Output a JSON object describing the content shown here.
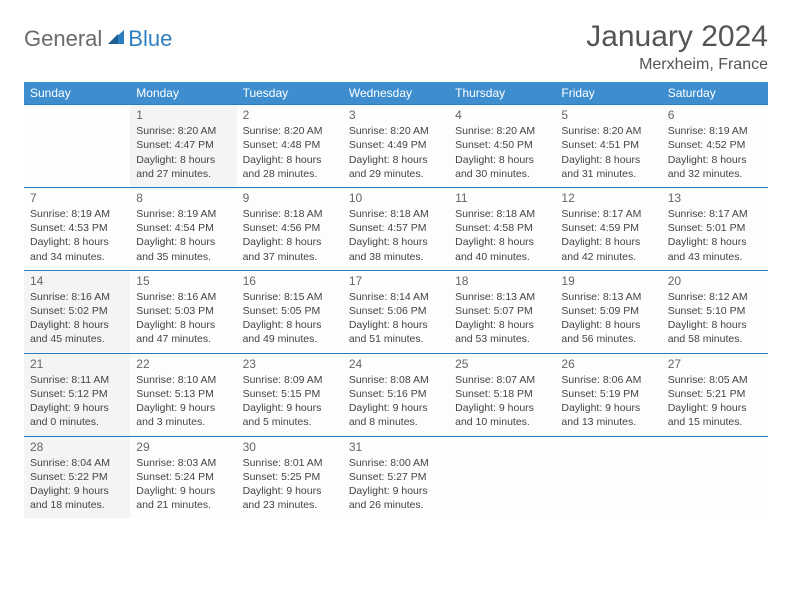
{
  "logo": {
    "general": "General",
    "blue": "Blue",
    "icon_color": "#2e7fc1"
  },
  "title": "January 2024",
  "location": "Merxheim, France",
  "colors": {
    "header_bg": "#3e8ecf",
    "header_text": "#ffffff",
    "border": "#2e7fc1",
    "shaded_bg": "#f4f4f4",
    "plain_bg": "#fdfdfd",
    "text": "#444444",
    "daynum": "#666666"
  },
  "weekdays": [
    "Sunday",
    "Monday",
    "Tuesday",
    "Wednesday",
    "Thursday",
    "Friday",
    "Saturday"
  ],
  "weeks": [
    [
      {
        "shaded": false
      },
      {
        "n": "1",
        "sr": "Sunrise: 8:20 AM",
        "ss": "Sunset: 4:47 PM",
        "d1": "Daylight: 8 hours",
        "d2": "and 27 minutes.",
        "shaded": true
      },
      {
        "n": "2",
        "sr": "Sunrise: 8:20 AM",
        "ss": "Sunset: 4:48 PM",
        "d1": "Daylight: 8 hours",
        "d2": "and 28 minutes.",
        "shaded": false
      },
      {
        "n": "3",
        "sr": "Sunrise: 8:20 AM",
        "ss": "Sunset: 4:49 PM",
        "d1": "Daylight: 8 hours",
        "d2": "and 29 minutes.",
        "shaded": false
      },
      {
        "n": "4",
        "sr": "Sunrise: 8:20 AM",
        "ss": "Sunset: 4:50 PM",
        "d1": "Daylight: 8 hours",
        "d2": "and 30 minutes.",
        "shaded": false
      },
      {
        "n": "5",
        "sr": "Sunrise: 8:20 AM",
        "ss": "Sunset: 4:51 PM",
        "d1": "Daylight: 8 hours",
        "d2": "and 31 minutes.",
        "shaded": false
      },
      {
        "n": "6",
        "sr": "Sunrise: 8:19 AM",
        "ss": "Sunset: 4:52 PM",
        "d1": "Daylight: 8 hours",
        "d2": "and 32 minutes.",
        "shaded": false
      }
    ],
    [
      {
        "n": "7",
        "sr": "Sunrise: 8:19 AM",
        "ss": "Sunset: 4:53 PM",
        "d1": "Daylight: 8 hours",
        "d2": "and 34 minutes.",
        "shaded": false
      },
      {
        "n": "8",
        "sr": "Sunrise: 8:19 AM",
        "ss": "Sunset: 4:54 PM",
        "d1": "Daylight: 8 hours",
        "d2": "and 35 minutes.",
        "shaded": false
      },
      {
        "n": "9",
        "sr": "Sunrise: 8:18 AM",
        "ss": "Sunset: 4:56 PM",
        "d1": "Daylight: 8 hours",
        "d2": "and 37 minutes.",
        "shaded": false
      },
      {
        "n": "10",
        "sr": "Sunrise: 8:18 AM",
        "ss": "Sunset: 4:57 PM",
        "d1": "Daylight: 8 hours",
        "d2": "and 38 minutes.",
        "shaded": false
      },
      {
        "n": "11",
        "sr": "Sunrise: 8:18 AM",
        "ss": "Sunset: 4:58 PM",
        "d1": "Daylight: 8 hours",
        "d2": "and 40 minutes.",
        "shaded": false
      },
      {
        "n": "12",
        "sr": "Sunrise: 8:17 AM",
        "ss": "Sunset: 4:59 PM",
        "d1": "Daylight: 8 hours",
        "d2": "and 42 minutes.",
        "shaded": false
      },
      {
        "n": "13",
        "sr": "Sunrise: 8:17 AM",
        "ss": "Sunset: 5:01 PM",
        "d1": "Daylight: 8 hours",
        "d2": "and 43 minutes.",
        "shaded": false
      }
    ],
    [
      {
        "n": "14",
        "sr": "Sunrise: 8:16 AM",
        "ss": "Sunset: 5:02 PM",
        "d1": "Daylight: 8 hours",
        "d2": "and 45 minutes.",
        "shaded": true
      },
      {
        "n": "15",
        "sr": "Sunrise: 8:16 AM",
        "ss": "Sunset: 5:03 PM",
        "d1": "Daylight: 8 hours",
        "d2": "and 47 minutes.",
        "shaded": false
      },
      {
        "n": "16",
        "sr": "Sunrise: 8:15 AM",
        "ss": "Sunset: 5:05 PM",
        "d1": "Daylight: 8 hours",
        "d2": "and 49 minutes.",
        "shaded": false
      },
      {
        "n": "17",
        "sr": "Sunrise: 8:14 AM",
        "ss": "Sunset: 5:06 PM",
        "d1": "Daylight: 8 hours",
        "d2": "and 51 minutes.",
        "shaded": false
      },
      {
        "n": "18",
        "sr": "Sunrise: 8:13 AM",
        "ss": "Sunset: 5:07 PM",
        "d1": "Daylight: 8 hours",
        "d2": "and 53 minutes.",
        "shaded": false
      },
      {
        "n": "19",
        "sr": "Sunrise: 8:13 AM",
        "ss": "Sunset: 5:09 PM",
        "d1": "Daylight: 8 hours",
        "d2": "and 56 minutes.",
        "shaded": false
      },
      {
        "n": "20",
        "sr": "Sunrise: 8:12 AM",
        "ss": "Sunset: 5:10 PM",
        "d1": "Daylight: 8 hours",
        "d2": "and 58 minutes.",
        "shaded": false
      }
    ],
    [
      {
        "n": "21",
        "sr": "Sunrise: 8:11 AM",
        "ss": "Sunset: 5:12 PM",
        "d1": "Daylight: 9 hours",
        "d2": "and 0 minutes.",
        "shaded": true
      },
      {
        "n": "22",
        "sr": "Sunrise: 8:10 AM",
        "ss": "Sunset: 5:13 PM",
        "d1": "Daylight: 9 hours",
        "d2": "and 3 minutes.",
        "shaded": false
      },
      {
        "n": "23",
        "sr": "Sunrise: 8:09 AM",
        "ss": "Sunset: 5:15 PM",
        "d1": "Daylight: 9 hours",
        "d2": "and 5 minutes.",
        "shaded": false
      },
      {
        "n": "24",
        "sr": "Sunrise: 8:08 AM",
        "ss": "Sunset: 5:16 PM",
        "d1": "Daylight: 9 hours",
        "d2": "and 8 minutes.",
        "shaded": false
      },
      {
        "n": "25",
        "sr": "Sunrise: 8:07 AM",
        "ss": "Sunset: 5:18 PM",
        "d1": "Daylight: 9 hours",
        "d2": "and 10 minutes.",
        "shaded": false
      },
      {
        "n": "26",
        "sr": "Sunrise: 8:06 AM",
        "ss": "Sunset: 5:19 PM",
        "d1": "Daylight: 9 hours",
        "d2": "and 13 minutes.",
        "shaded": false
      },
      {
        "n": "27",
        "sr": "Sunrise: 8:05 AM",
        "ss": "Sunset: 5:21 PM",
        "d1": "Daylight: 9 hours",
        "d2": "and 15 minutes.",
        "shaded": false
      }
    ],
    [
      {
        "n": "28",
        "sr": "Sunrise: 8:04 AM",
        "ss": "Sunset: 5:22 PM",
        "d1": "Daylight: 9 hours",
        "d2": "and 18 minutes.",
        "shaded": true
      },
      {
        "n": "29",
        "sr": "Sunrise: 8:03 AM",
        "ss": "Sunset: 5:24 PM",
        "d1": "Daylight: 9 hours",
        "d2": "and 21 minutes.",
        "shaded": false
      },
      {
        "n": "30",
        "sr": "Sunrise: 8:01 AM",
        "ss": "Sunset: 5:25 PM",
        "d1": "Daylight: 9 hours",
        "d2": "and 23 minutes.",
        "shaded": false
      },
      {
        "n": "31",
        "sr": "Sunrise: 8:00 AM",
        "ss": "Sunset: 5:27 PM",
        "d1": "Daylight: 9 hours",
        "d2": "and 26 minutes.",
        "shaded": false
      },
      {
        "shaded": false
      },
      {
        "shaded": false
      },
      {
        "shaded": false
      }
    ]
  ]
}
